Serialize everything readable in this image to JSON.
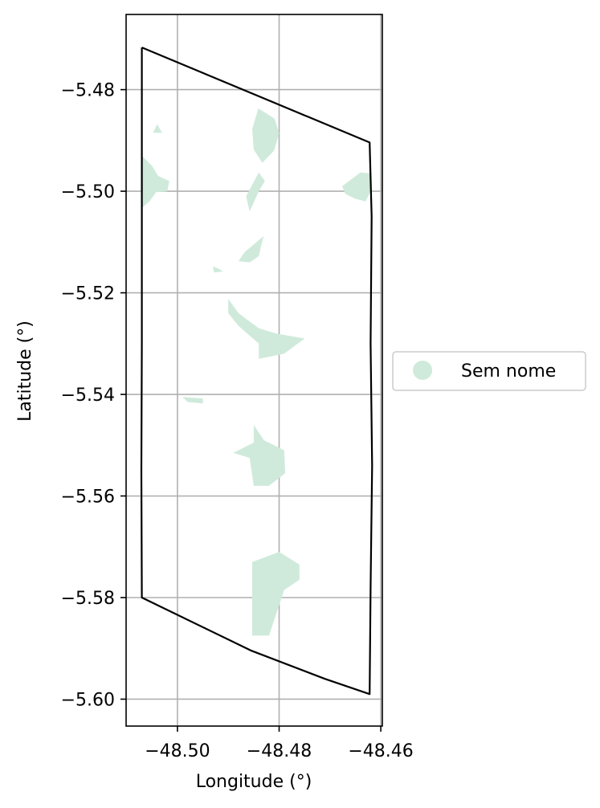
{
  "chart_data": {
    "type": "map",
    "title": "",
    "xlabel": "Longitude (°)",
    "ylabel": "Latitude (°)",
    "xlim": [
      -48.5101,
      -48.4597
    ],
    "ylim": [
      -5.6053,
      -5.4652
    ],
    "x_ticks": [
      -48.5,
      -48.48,
      -48.46
    ],
    "x_tick_labels": [
      "−48.50",
      "−48.48",
      "−48.46"
    ],
    "y_ticks": [
      -5.48,
      -5.5,
      -5.52,
      -5.54,
      -5.56,
      -5.58,
      -5.6
    ],
    "y_tick_labels": [
      "−5.48",
      "−5.50",
      "−5.52",
      "−5.54",
      "−5.56",
      "−5.58",
      "−5.60"
    ],
    "grid": true,
    "boundary": {
      "stroke": "#000000",
      "points": [
        [
          -48.507,
          -5.4717
        ],
        [
          -48.4622,
          -5.4904
        ],
        [
          -48.4618,
          -5.505
        ],
        [
          -48.462,
          -5.53
        ],
        [
          -48.4617,
          -5.554
        ],
        [
          -48.462,
          -5.578
        ],
        [
          -48.4622,
          -5.599
        ],
        [
          -48.471,
          -5.596
        ],
        [
          -48.4856,
          -5.5904
        ],
        [
          -48.507,
          -5.58
        ],
        [
          -48.5071,
          -5.555
        ],
        [
          -48.507,
          -5.53
        ],
        [
          -48.507,
          -5.505
        ],
        [
          -48.507,
          -5.4717
        ]
      ]
    },
    "areas": [
      {
        "category": "Sem nome",
        "color": "#cfeadb",
        "polygons": [
          [
            [
              -48.4841,
              -5.4837
            ],
            [
              -48.4809,
              -5.4857
            ],
            [
              -48.48,
              -5.4886
            ],
            [
              -48.481,
              -5.492
            ],
            [
              -48.4833,
              -5.4944
            ],
            [
              -48.485,
              -5.4918
            ],
            [
              -48.4853,
              -5.4878
            ]
          ],
          [
            [
              -48.507,
              -5.493
            ],
            [
              -48.505,
              -5.495
            ],
            [
              -48.5038,
              -5.497
            ],
            [
              -48.5016,
              -5.498
            ],
            [
              -48.502,
              -5.5
            ],
            [
              -48.5042,
              -5.5002
            ],
            [
              -48.5055,
              -5.502
            ],
            [
              -48.507,
              -5.5033
            ]
          ],
          [
            [
              -48.464,
              -5.4963
            ],
            [
              -48.466,
              -5.4978
            ],
            [
              -48.4676,
              -5.499
            ],
            [
              -48.467,
              -5.5005
            ],
            [
              -48.465,
              -5.5015
            ],
            [
              -48.463,
              -5.502
            ],
            [
              -48.462,
              -5.5
            ],
            [
              -48.462,
              -5.4965
            ]
          ],
          [
            [
              -48.484,
              -5.4963
            ],
            [
              -48.4828,
              -5.498
            ],
            [
              -48.484,
              -5.5
            ],
            [
              -48.4858,
              -5.504
            ],
            [
              -48.4865,
              -5.501
            ]
          ],
          [
            [
              -48.483,
              -5.5088
            ],
            [
              -48.4868,
              -5.512
            ],
            [
              -48.488,
              -5.5138
            ],
            [
              -48.4858,
              -5.514
            ],
            [
              -48.484,
              -5.5128
            ],
            [
              -48.4835,
              -5.5105
            ]
          ],
          [
            [
              -48.49,
              -5.5212
            ],
            [
              -48.488,
              -5.524
            ],
            [
              -48.484,
              -5.527
            ],
            [
              -48.4806,
              -5.528
            ],
            [
              -48.475,
              -5.529
            ],
            [
              -48.479,
              -5.532
            ],
            [
              -48.484,
              -5.533
            ],
            [
              -48.484,
              -5.53
            ],
            [
              -48.488,
              -5.5265
            ],
            [
              -48.49,
              -5.524
            ]
          ],
          [
            [
              -48.485,
              -5.546
            ],
            [
              -48.485,
              -5.5495
            ],
            [
              -48.489,
              -5.5515
            ],
            [
              -48.4858,
              -5.5525
            ],
            [
              -48.485,
              -5.558
            ],
            [
              -48.482,
              -5.558
            ],
            [
              -48.4788,
              -5.5555
            ],
            [
              -48.479,
              -5.551
            ],
            [
              -48.483,
              -5.549
            ]
          ],
          [
            [
              -48.4853,
              -5.573
            ],
            [
              -48.48,
              -5.571
            ],
            [
              -48.476,
              -5.5735
            ],
            [
              -48.476,
              -5.5765
            ],
            [
              -48.479,
              -5.5785
            ],
            [
              -48.482,
              -5.5875
            ],
            [
              -48.4853,
              -5.5875
            ]
          ],
          [
            [
              -48.504,
              -5.4868
            ],
            [
              -48.5048,
              -5.4885
            ],
            [
              -48.503,
              -5.4885
            ]
          ],
          [
            [
              -48.499,
              -5.5405
            ],
            [
              -48.495,
              -5.5408
            ],
            [
              -48.495,
              -5.5418
            ],
            [
              -48.498,
              -5.5415
            ]
          ],
          [
            [
              -48.493,
              -5.5148
            ],
            [
              -48.492,
              -5.5152
            ],
            [
              -48.491,
              -5.5158
            ],
            [
              -48.4928,
              -5.516
            ]
          ]
        ]
      }
    ],
    "legend": {
      "placement": "right",
      "entries": [
        {
          "label": "Sem nome",
          "color": "#cfeadb"
        }
      ]
    }
  }
}
